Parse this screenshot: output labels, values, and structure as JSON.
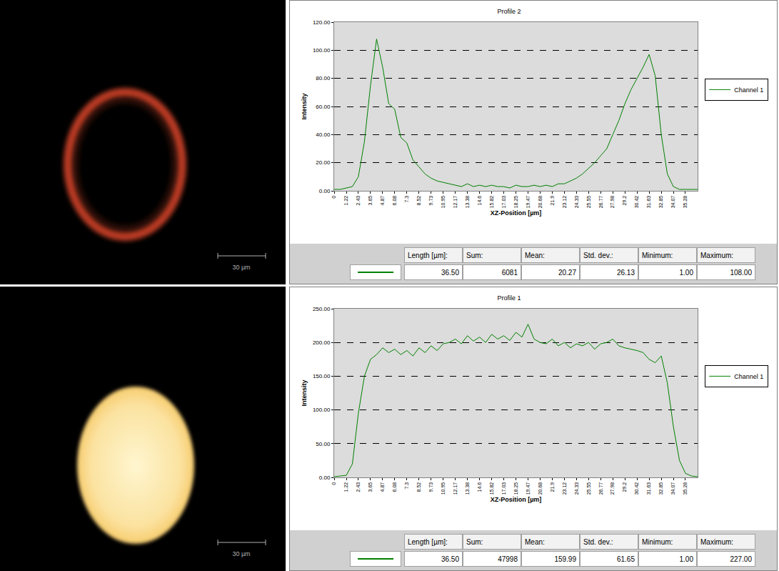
{
  "chart_data": [
    {
      "type": "line",
      "title": "Profile 2",
      "x_label": "XZ-Position [µm]",
      "y_label": "Intensity",
      "x": [
        0,
        0.61,
        1.22,
        1.83,
        2.43,
        3.04,
        3.65,
        4.26,
        4.87,
        5.48,
        6.08,
        6.69,
        7.3,
        7.91,
        8.52,
        9.13,
        9.73,
        10.34,
        10.95,
        11.56,
        12.17,
        12.78,
        13.38,
        13.99,
        14.6,
        15.21,
        15.82,
        16.43,
        17.03,
        17.64,
        18.25,
        18.86,
        19.47,
        20.08,
        20.68,
        21.29,
        21.9,
        22.51,
        23.12,
        23.73,
        24.33,
        24.94,
        25.55,
        26.16,
        26.77,
        27.38,
        27.98,
        28.59,
        29.2,
        29.81,
        30.42,
        31.03,
        31.63,
        32.24,
        32.85,
        33.46,
        34.07,
        34.68,
        35.28,
        35.89,
        36.5
      ],
      "series": [
        {
          "name": "Channel 1",
          "color": "#008000",
          "values": [
            1,
            1,
            2,
            3,
            10,
            35,
            75,
            108,
            88,
            62,
            58,
            38,
            34,
            22,
            17,
            12,
            9,
            7,
            6,
            5,
            4,
            3,
            5,
            3,
            4,
            3,
            4,
            3,
            3,
            2,
            4,
            3,
            3,
            4,
            3,
            4,
            3,
            5,
            5,
            7,
            9,
            12,
            16,
            20,
            25,
            30,
            40,
            50,
            62,
            72,
            80,
            88,
            97,
            82,
            40,
            12,
            3,
            1,
            1,
            1,
            1
          ]
        }
      ],
      "xlim": [
        0,
        36.5
      ],
      "xticks": [
        0,
        1.22,
        2.43,
        3.65,
        4.87,
        6.08,
        7.3,
        8.52,
        9.73,
        10.95,
        12.17,
        13.38,
        14.6,
        15.82,
        17.03,
        18.25,
        19.47,
        20.68,
        21.9,
        23.12,
        24.33,
        25.55,
        26.77,
        27.98,
        29.2,
        30.42,
        31.63,
        32.85,
        34.07,
        35.28
      ],
      "ylim": [
        0,
        120
      ],
      "yticks": [
        {
          "value": 0,
          "label": "0.00"
        },
        {
          "value": 20,
          "label": "20.00"
        },
        {
          "value": 40,
          "label": "40.00"
        },
        {
          "value": 60,
          "label": "60.00"
        },
        {
          "value": 80,
          "label": "80.00"
        },
        {
          "value": 100,
          "label": "100.00"
        },
        {
          "value": 120,
          "label": "120.00"
        }
      ],
      "grid": true,
      "legend": "right",
      "stats": {
        "labels": [
          "Length [µm]:",
          "Sum:",
          "Mean:",
          "Std. dev.:",
          "Minimum:",
          "Maximum:"
        ],
        "values": [
          "36.50",
          "6081",
          "20.27",
          "26.13",
          "1.00",
          "108.00"
        ]
      }
    },
    {
      "type": "line",
      "title": "Profile 1",
      "x_label": "XZ-Position [µm]",
      "y_label": "Intensity",
      "x": [
        0,
        0.61,
        1.22,
        1.83,
        2.43,
        3.04,
        3.65,
        4.26,
        4.87,
        5.48,
        6.08,
        6.69,
        7.3,
        7.91,
        8.52,
        9.13,
        9.73,
        10.34,
        10.95,
        11.56,
        12.17,
        12.78,
        13.38,
        13.99,
        14.6,
        15.21,
        15.82,
        16.43,
        17.03,
        17.64,
        18.25,
        18.86,
        19.47,
        20.08,
        20.68,
        21.29,
        21.9,
        22.51,
        23.12,
        23.73,
        24.33,
        24.94,
        25.55,
        26.16,
        26.77,
        27.38,
        27.98,
        28.59,
        29.2,
        29.81,
        30.42,
        31.03,
        31.63,
        32.24,
        32.85,
        33.46,
        34.07,
        34.68,
        35.28,
        35.89,
        36.5
      ],
      "series": [
        {
          "name": "Channel 1",
          "color": "#008000",
          "values": [
            1,
            2,
            3,
            20,
            95,
            150,
            175,
            182,
            192,
            185,
            190,
            182,
            188,
            180,
            192,
            185,
            195,
            188,
            198,
            200,
            205,
            198,
            210,
            202,
            208,
            200,
            212,
            205,
            210,
            203,
            215,
            208,
            227,
            205,
            200,
            198,
            205,
            195,
            200,
            192,
            198,
            195,
            200,
            190,
            198,
            200,
            205,
            195,
            192,
            190,
            188,
            185,
            175,
            170,
            180,
            140,
            75,
            25,
            6,
            2,
            1
          ]
        }
      ],
      "xlim": [
        0,
        36.5
      ],
      "xticks": [
        0,
        1.22,
        2.43,
        3.65,
        4.87,
        6.08,
        7.3,
        8.52,
        9.73,
        10.95,
        12.17,
        13.38,
        14.6,
        15.82,
        17.03,
        18.25,
        19.47,
        20.68,
        21.9,
        23.12,
        24.33,
        25.55,
        26.77,
        27.98,
        29.2,
        30.42,
        31.63,
        32.85,
        34.07,
        35.28
      ],
      "ylim": [
        0,
        250
      ],
      "yticks": [
        {
          "value": 0,
          "label": "0.00"
        },
        {
          "value": 50,
          "label": "50.00"
        },
        {
          "value": 100,
          "label": "100.00"
        },
        {
          "value": 150,
          "label": "150.00"
        },
        {
          "value": 200,
          "label": "200.00"
        },
        {
          "value": 250,
          "label": "250.00"
        }
      ],
      "grid": true,
      "legend": "right",
      "stats": {
        "labels": [
          "Length [µm]:",
          "Sum:",
          "Mean:",
          "Std. dev.:",
          "Minimum:",
          "Maximum:"
        ],
        "values": [
          "36.50",
          "47998",
          "159.99",
          "61.65",
          "1.00",
          "227.00"
        ]
      }
    }
  ],
  "images": [
    {
      "type": "ring",
      "color": "#d9472b",
      "scale_bar": "30 µm"
    },
    {
      "type": "disk",
      "color": "#f5c45a",
      "scale_bar": "30 µm"
    }
  ]
}
